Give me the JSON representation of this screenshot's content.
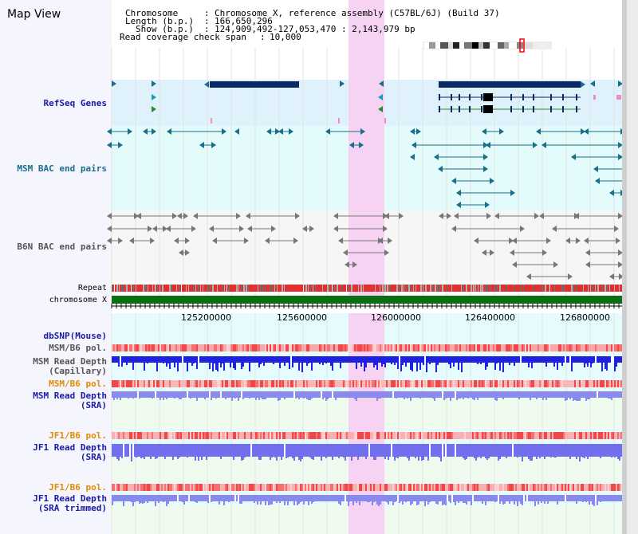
{
  "page": {
    "title": "Map View"
  },
  "header": {
    "chromosome_label": "Chromosome",
    "chromosome_value": "Chromosome X, reference assembly (C57BL/6J) (Build 37)",
    "length_label": "Length (b.p.)",
    "length_value": "166,650,296",
    "show_label": "Show (b.p.)",
    "show_value": "124,909,492-127,053,470 : 2,143,979 bp",
    "coverage_label": "Read coverage check span",
    "coverage_value": "10,000"
  },
  "tracks": {
    "refseq": "RefSeq Genes",
    "msm_bac": "MSM BAC end pairs",
    "b6n_bac": "B6N BAC end pairs",
    "repeat": "Repeat",
    "chromosome": "chromosome X",
    "dbsnp": "dbSNP(Mouse)",
    "msm_b6_pol_1": "MSM/B6 pol.",
    "msm_depth_cap_1": "MSM Read Depth",
    "msm_depth_cap_2": "(Capillary)",
    "msm_b6_pol_2": "MSM/B6 pol.",
    "msm_depth_sra_1": "MSM Read Depth",
    "msm_depth_sra_2": "(SRA)",
    "jf1_b6_pol_1": "JF1/B6 pol.",
    "jf1_depth_sra_1": "JF1 Read Depth",
    "jf1_depth_sra_2": "(SRA)",
    "jf1_b6_pol_2": "JF1/B6 pol.",
    "jf1_depth_trim_1": "JF1 Read Depth",
    "jf1_depth_trim_2": "(SRA trimmed)"
  },
  "ruler": {
    "ticks": [
      "125200000",
      "125600000",
      "126000000",
      "126400000",
      "126800000"
    ]
  },
  "colors": {
    "refseq_bg": "#dff2fb",
    "msm_bg": "#e3fbfb",
    "b6n_bg": "#f6f6f6",
    "lower_bg": "#e6fbfb",
    "sra_bg": "#effbef",
    "highlight": "#f7d3f3",
    "chromosome_bar": "#0a6e12"
  }
}
